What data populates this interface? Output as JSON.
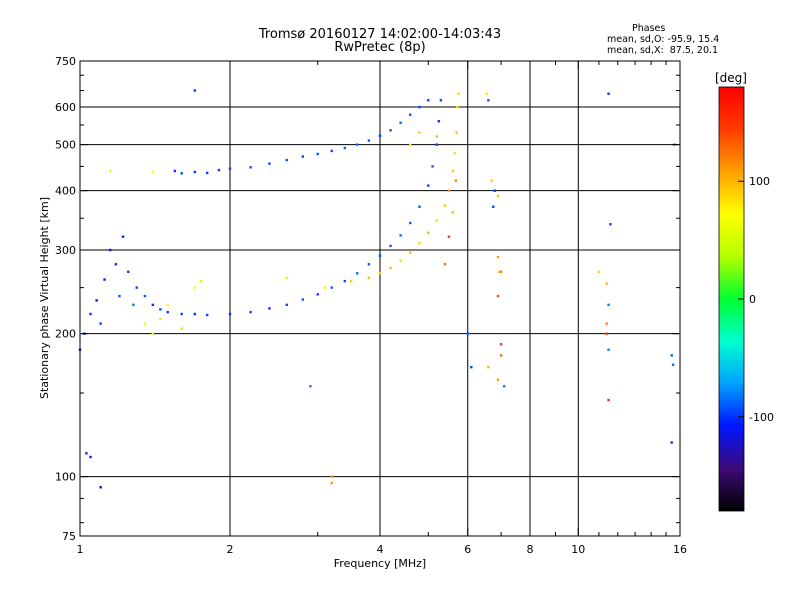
{
  "chart_data": {
    "type": "scatter",
    "title": "Tromsø 20160127 14:02:00-14:03:43",
    "subtitle": "RwPretec (8p)",
    "annotation": {
      "heading": "Phases",
      "line_o": "mean, sd,O: -95.9, 15.4",
      "line_x": "mean, sd,X:  87.5, 20.1"
    },
    "xlabel": "Frequency [MHz]",
    "ylabel": "Stationary phase Virtual Height [km]",
    "x_scale": "log",
    "y_scale": "log",
    "xlim": [
      1,
      16
    ],
    "ylim": [
      75,
      750
    ],
    "x_ticks": [
      1,
      2,
      4,
      6,
      8,
      10,
      16
    ],
    "y_ticks": [
      75,
      100,
      200,
      300,
      400,
      500,
      600,
      750
    ],
    "x_gridlines": [
      2,
      4,
      6,
      8,
      10
    ],
    "y_gridlines": [
      100,
      200,
      300,
      400,
      500,
      600
    ],
    "grid": true,
    "colorbar": {
      "label": "[deg]",
      "range": [
        -180,
        180
      ],
      "ticks": [
        100,
        0,
        -100
      ],
      "colors": [
        "#000000",
        "#3c0a78",
        "#0014ff",
        "#00a0ff",
        "#00ffd0",
        "#00ff30",
        "#b4ff00",
        "#ffff00",
        "#ffa000",
        "#ff3c00",
        "#ff0000"
      ]
    },
    "series": [
      {
        "values": [
          [
            1.0,
            185,
            -110
          ],
          [
            1.02,
            200,
            -105
          ],
          [
            1.05,
            220,
            -100
          ],
          [
            1.08,
            235,
            -110
          ],
          [
            1.1,
            210,
            -95
          ],
          [
            1.12,
            260,
            -105
          ],
          [
            1.15,
            300,
            -110
          ],
          [
            1.18,
            280,
            -100
          ],
          [
            1.2,
            240,
            -90
          ],
          [
            1.22,
            320,
            -105
          ],
          [
            1.25,
            270,
            -100
          ],
          [
            1.28,
            230,
            -80
          ],
          [
            1.3,
            250,
            -95
          ],
          [
            1.35,
            240,
            -90
          ],
          [
            1.4,
            230,
            -100
          ],
          [
            1.45,
            225,
            -95
          ],
          [
            1.5,
            222,
            -100
          ],
          [
            1.6,
            220,
            -95
          ],
          [
            1.7,
            220,
            -100
          ],
          [
            1.8,
            219,
            -95
          ],
          [
            2.0,
            220,
            -100
          ],
          [
            2.2,
            222,
            -95
          ],
          [
            2.4,
            226,
            -100
          ],
          [
            2.6,
            230,
            -95
          ],
          [
            2.8,
            236,
            -90
          ],
          [
            3.0,
            242,
            -95
          ],
          [
            3.2,
            250,
            -90
          ],
          [
            3.4,
            258,
            -95
          ],
          [
            3.6,
            268,
            -85
          ],
          [
            3.8,
            280,
            -90
          ],
          [
            4.0,
            292,
            -95
          ],
          [
            4.2,
            306,
            -90
          ],
          [
            4.4,
            322,
            -85
          ],
          [
            4.6,
            342,
            -90
          ],
          [
            4.8,
            370,
            -90
          ],
          [
            5.0,
            410,
            -95
          ],
          [
            5.1,
            450,
            -90
          ],
          [
            5.2,
            500,
            -95
          ],
          [
            5.25,
            560,
            -100
          ],
          [
            5.3,
            620,
            -95
          ]
        ]
      },
      {
        "values": [
          [
            1.55,
            440,
            -100
          ],
          [
            1.6,
            435,
            -95
          ],
          [
            1.7,
            438,
            -100
          ],
          [
            1.8,
            436,
            -95
          ],
          [
            1.9,
            442,
            -100
          ],
          [
            2.0,
            445,
            -95
          ],
          [
            2.2,
            448,
            -90
          ],
          [
            2.4,
            456,
            -95
          ],
          [
            2.6,
            464,
            -90
          ],
          [
            2.8,
            472,
            -95
          ],
          [
            3.0,
            478,
            -90
          ],
          [
            3.2,
            485,
            -95
          ],
          [
            3.4,
            492,
            -90
          ],
          [
            3.6,
            500,
            -85
          ],
          [
            3.8,
            510,
            -90
          ],
          [
            4.0,
            522,
            -95
          ],
          [
            4.2,
            536,
            -90
          ],
          [
            4.4,
            556,
            -85
          ],
          [
            4.6,
            578,
            -90
          ],
          [
            4.8,
            600,
            -95
          ],
          [
            5.0,
            620,
            -95
          ]
        ]
      },
      {
        "values": [
          [
            3.8,
            262,
            95
          ],
          [
            4.0,
            268,
            90
          ],
          [
            4.2,
            275,
            100
          ],
          [
            4.4,
            285,
            85
          ],
          [
            4.6,
            296,
            95
          ],
          [
            4.8,
            310,
            90
          ],
          [
            5.0,
            326,
            100
          ],
          [
            5.2,
            346,
            85
          ],
          [
            5.4,
            372,
            90
          ],
          [
            5.5,
            400,
            110
          ],
          [
            5.6,
            440,
            90
          ],
          [
            5.65,
            480,
            85
          ],
          [
            5.7,
            530,
            95
          ],
          [
            5.72,
            600,
            80
          ],
          [
            5.75,
            640,
            85
          ],
          [
            5.4,
            280,
            130
          ],
          [
            5.5,
            320,
            140
          ],
          [
            5.6,
            360,
            100
          ],
          [
            5.68,
            420,
            120
          ],
          [
            4.6,
            500,
            80
          ],
          [
            4.8,
            530,
            90
          ],
          [
            5.2,
            520,
            100
          ]
        ]
      },
      {
        "values": [
          [
            1.35,
            210,
            60
          ],
          [
            1.4,
            200,
            55
          ],
          [
            1.45,
            215,
            50
          ],
          [
            1.5,
            230,
            70
          ],
          [
            1.6,
            205,
            40
          ],
          [
            1.7,
            250,
            65
          ],
          [
            1.75,
            258,
            45
          ],
          [
            2.6,
            262,
            50
          ],
          [
            3.1,
            250,
            80
          ],
          [
            3.5,
            258,
            90
          ],
          [
            1.15,
            440,
            60
          ],
          [
            1.4,
            438,
            70
          ]
        ]
      },
      {
        "values": [
          [
            1.03,
            112,
            -100
          ],
          [
            1.05,
            110,
            -105
          ],
          [
            1.1,
            95,
            -110
          ],
          [
            1.7,
            650,
            -100
          ],
          [
            2.9,
            155,
            -80
          ],
          [
            3.2,
            100,
            110
          ],
          [
            3.2,
            97,
            115
          ],
          [
            6.0,
            200,
            -90
          ],
          [
            6.1,
            170,
            -95
          ],
          [
            6.55,
            640,
            80
          ],
          [
            6.6,
            620,
            -90
          ],
          [
            6.7,
            420,
            90
          ],
          [
            6.75,
            370,
            -95
          ],
          [
            6.8,
            400,
            -100
          ],
          [
            6.9,
            390,
            95
          ],
          [
            6.9,
            290,
            110
          ],
          [
            6.95,
            270,
            105
          ],
          [
            6.9,
            240,
            140
          ],
          [
            7.0,
            190,
            150
          ],
          [
            7.0,
            180,
            130
          ],
          [
            6.9,
            160,
            110
          ],
          [
            7.1,
            155,
            -80
          ],
          [
            6.6,
            170,
            100
          ],
          [
            7.0,
            270,
            120
          ],
          [
            11.0,
            270,
            85
          ],
          [
            11.5,
            640,
            -100
          ],
          [
            11.6,
            340,
            -95
          ],
          [
            11.4,
            255,
            100
          ],
          [
            11.5,
            230,
            -80
          ],
          [
            11.4,
            210,
            120
          ],
          [
            11.4,
            200,
            150
          ],
          [
            11.5,
            185,
            -80
          ],
          [
            11.5,
            145,
            160
          ],
          [
            15.4,
            180,
            -90
          ],
          [
            15.5,
            172,
            -85
          ],
          [
            15.4,
            118,
            -100
          ],
          [
            15.6,
            500,
            -70
          ]
        ]
      }
    ]
  }
}
